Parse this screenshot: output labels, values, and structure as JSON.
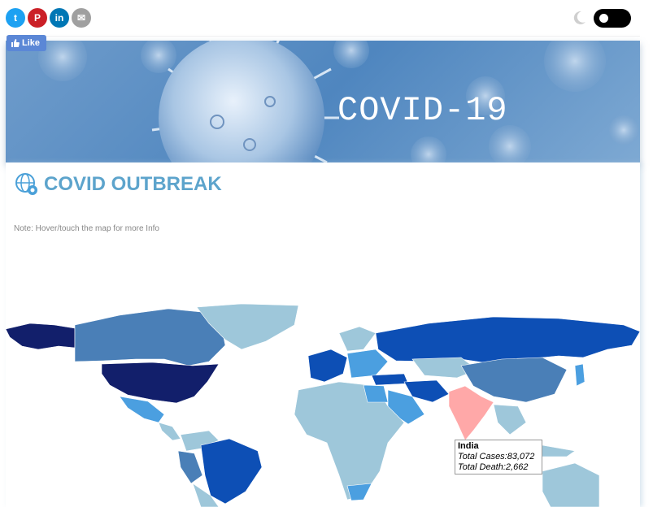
{
  "share": {
    "twitter_icon": "twitter-icon",
    "pinterest_icon": "pinterest-icon",
    "linkedin_icon": "linkedin-icon",
    "email_icon": "email-icon",
    "twitter_glyph": "t",
    "pinterest_glyph": "P",
    "linkedin_glyph": "in",
    "email_glyph": "✉"
  },
  "theme_toggle": {
    "icon": "moon-icon",
    "state": "off"
  },
  "like_button": {
    "label": "Like",
    "icon": "thumbs-up-icon"
  },
  "banner": {
    "title": "COVID-19"
  },
  "main": {
    "heading": "COVID OUTBREAK",
    "heading_icon": "globe-gear-icon",
    "note": "Note: Hover/touch the map for more Info"
  },
  "tooltip": {
    "country": "India",
    "cases": "Total Cases:83,072",
    "deaths": "Total Death:2,662"
  },
  "colors": {
    "dark": "#121f6b",
    "strong": "#0d4fb5",
    "medium": "#4a7fb7",
    "light_blue": "#4b9fe0",
    "pale": "#9ec7da",
    "highlight": "#ffa8a8",
    "heading": "#5da4cc"
  }
}
